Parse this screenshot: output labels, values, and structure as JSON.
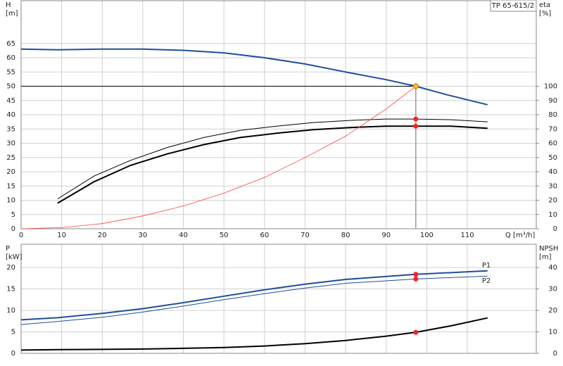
{
  "chart_data": [
    {
      "type": "line",
      "title": "TP 65-615/2",
      "ylabel": [
        "H",
        "[m]"
      ],
      "y2label": [
        "eta",
        "[%]"
      ],
      "xlabel": "Q [m³/h]",
      "xlim": [
        0,
        127
      ],
      "xticks": [
        0,
        10,
        20,
        30,
        40,
        50,
        60,
        70,
        80,
        90,
        100,
        110
      ],
      "ylim": [
        0,
        80
      ],
      "yticks": [
        0,
        5,
        10,
        15,
        20,
        25,
        30,
        35,
        40,
        45,
        50,
        55,
        60,
        65
      ],
      "y2lim": [
        0,
        160
      ],
      "y2ticks": [
        0,
        10,
        20,
        30,
        40,
        50,
        60,
        70,
        80,
        90,
        100
      ],
      "grid": true,
      "series": [
        {
          "color": "#1f4e9a",
          "width": 2,
          "x": [
            0,
            9,
            20,
            30,
            40,
            50,
            60,
            70,
            80,
            90,
            97.3,
            105,
            115
          ],
          "values": [
            63,
            62.8,
            63,
            63,
            62.6,
            61.7,
            60,
            57.8,
            55,
            52.3,
            50,
            47,
            43.5
          ]
        },
        {
          "color": "#000000",
          "width": 1,
          "axis": "y2",
          "x": [
            9,
            18,
            27,
            36,
            45,
            54,
            63,
            72,
            81,
            90,
            97.3,
            106,
            115
          ],
          "values": [
            21,
            37,
            48,
            57,
            64,
            69,
            72,
            74.5,
            76,
            77,
            77,
            76.5,
            75
          ]
        },
        {
          "color": "#000000",
          "width": 2,
          "axis": "y2",
          "x": [
            9,
            18,
            27,
            36,
            45,
            54,
            63,
            72,
            81,
            90,
            97.3,
            106,
            115
          ],
          "values": [
            18,
            33,
            44.5,
            52.5,
            59,
            64,
            67,
            69.5,
            71,
            72,
            72,
            72,
            70.5
          ]
        },
        {
          "color": "#ff4040",
          "width": 0.8,
          "x": [
            0,
            10,
            20,
            30,
            40,
            50,
            60,
            70,
            80,
            90,
            97.3
          ],
          "values": [
            0,
            0.4,
            1.8,
            4.5,
            8,
            12.5,
            18,
            25,
            32.5,
            42,
            50
          ]
        }
      ],
      "points": [
        {
          "x": 97.3,
          "y": 50,
          "color": "#ffc000"
        },
        {
          "x": 97.3,
          "y": 77,
          "axis": "y2",
          "color": "#ff2020"
        },
        {
          "x": 97.3,
          "y": 72,
          "axis": "y2",
          "color": "#ff2020"
        }
      ]
    },
    {
      "type": "line",
      "ylabel": [
        "P",
        "[kW]"
      ],
      "y2label": [
        "NPSH",
        "[m]"
      ],
      "xlim": [
        0,
        127
      ],
      "xticks": [
        0,
        10,
        20,
        30,
        40,
        50,
        60,
        70,
        80,
        90,
        100,
        110
      ],
      "ylim": [
        0,
        25.4
      ],
      "yticks": [
        0,
        5,
        10,
        15,
        20
      ],
      "y2lim": [
        0,
        50.8
      ],
      "y2ticks": [
        0,
        10,
        20,
        30,
        40
      ],
      "grid": true,
      "series": [
        {
          "name": "P1",
          "color": "#1f4e9a",
          "width": 2,
          "x": [
            0,
            9,
            20,
            30,
            40,
            50,
            60,
            70,
            80,
            97.3,
            115
          ],
          "values": [
            7.8,
            8.3,
            9.3,
            10.4,
            11.8,
            13.3,
            14.8,
            16.1,
            17.2,
            18.4,
            19.2
          ]
        },
        {
          "name": "P2",
          "color": "#1f4e9a",
          "width": 1,
          "x": [
            0,
            9,
            20,
            30,
            40,
            50,
            60,
            70,
            80,
            97.3,
            115
          ],
          "values": [
            6.7,
            7.4,
            8.4,
            9.6,
            11,
            12.5,
            13.9,
            15.2,
            16.3,
            17.3,
            18
          ]
        },
        {
          "color": "#000000",
          "width": 2,
          "axis": "y2",
          "x": [
            0,
            9,
            30,
            50,
            60,
            70,
            80,
            90,
            97.3,
            106,
            115
          ],
          "values": [
            1.5,
            1.7,
            2,
            2.7,
            3.4,
            4.5,
            6,
            8,
            9.8,
            12.8,
            16.5
          ]
        }
      ],
      "points": [
        {
          "x": 97.3,
          "y": 18.4,
          "color": "#ff2020"
        },
        {
          "x": 97.3,
          "y": 17.3,
          "color": "#ff2020"
        },
        {
          "x": 97.3,
          "y": 9.8,
          "axis": "y2",
          "color": "#ff2020"
        }
      ]
    }
  ]
}
